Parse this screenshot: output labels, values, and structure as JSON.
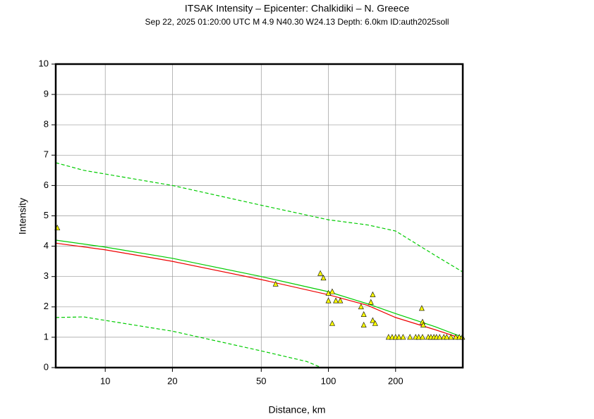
{
  "chart_data": {
    "type": "scatter",
    "title": "ITSAK Intensity –  Epicenter: Chalkidiki – N. Greece",
    "subtitle": "Sep 22, 2025 01:20:00 UTC   M 4.9   N40.30 W24.13   Depth: 6.0km   ID:auth2025soll",
    "x_label": "Distance, km",
    "y_label": "Intensity",
    "x_scale": "log",
    "grid": true,
    "xlim": [
      6,
      400
    ],
    "xticks": [
      10,
      20,
      50,
      100,
      200
    ],
    "ylim": [
      0,
      10
    ],
    "yticks": [
      0,
      1,
      2,
      3,
      4,
      5,
      6,
      7,
      8,
      9,
      10
    ],
    "series": [
      {
        "mode": "line",
        "dashed": false,
        "color": "#00cc00",
        "x": [
          6,
          10,
          20,
          50,
          100,
          150,
          200,
          300,
          400
        ],
        "values": [
          4.2,
          3.97,
          3.6,
          3.0,
          2.5,
          2.1,
          1.78,
          1.35,
          1.0
        ]
      },
      {
        "mode": "line",
        "dashed": false,
        "color": "#ee0000",
        "x": [
          6,
          10,
          20,
          50,
          100,
          150,
          200,
          300,
          400
        ],
        "values": [
          4.1,
          3.88,
          3.5,
          2.9,
          2.4,
          2.05,
          1.65,
          1.25,
          0.95
        ]
      },
      {
        "mode": "line",
        "dashed": true,
        "color": "#00cc00",
        "x": [
          6,
          8,
          20,
          50,
          100,
          150,
          200,
          300,
          400
        ],
        "values": [
          6.75,
          6.5,
          6.0,
          5.35,
          4.87,
          4.7,
          4.5,
          3.7,
          3.15
        ]
      },
      {
        "mode": "line",
        "dashed": true,
        "color": "#00cc00",
        "x": [
          6,
          8,
          20,
          50,
          80,
          93
        ],
        "values": [
          1.65,
          1.67,
          1.2,
          0.55,
          0.2,
          0
        ]
      },
      {
        "mode": "markers",
        "color": "#ffff00",
        "x": [
          6.1,
          58,
          92,
          95,
          100,
          104,
          100,
          108,
          113,
          104,
          140,
          144,
          144,
          155,
          158,
          158,
          162,
          262,
          264,
          266,
          186,
          193,
          200,
          207,
          216,
          232,
          246,
          254,
          264,
          280,
          288,
          297,
          305,
          315,
          329,
          339,
          354,
          372,
          386,
          398
        ],
        "values": [
          4.6,
          2.75,
          3.1,
          2.95,
          2.45,
          2.5,
          2.2,
          2.2,
          2.2,
          1.45,
          2.0,
          1.75,
          1.4,
          2.15,
          2.4,
          1.55,
          1.45,
          1.95,
          1.5,
          1.4,
          1,
          1,
          1,
          1,
          1,
          1,
          1,
          1,
          1,
          1,
          1,
          1,
          1,
          1,
          1,
          1,
          1,
          1,
          1,
          1
        ]
      }
    ]
  }
}
